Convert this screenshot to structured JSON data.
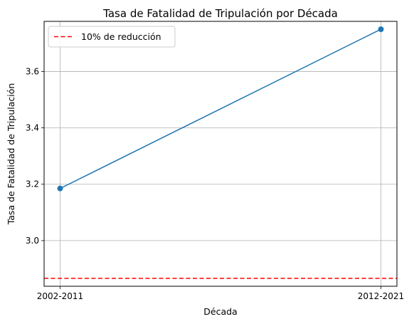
{
  "chart_data": {
    "type": "line",
    "title": "Tasa de Fatalidad de Tripulación por Década",
    "xlabel": "Década",
    "ylabel": "Tasa de Fatalidad de Tripulación",
    "categories": [
      "2002-2011",
      "2012-2021"
    ],
    "series": [
      {
        "values": [
          3.185,
          3.75
        ],
        "color": "#1f77b4",
        "marker": "circle"
      }
    ],
    "reference_lines": [
      {
        "name": "10% de reducción",
        "value": 2.866,
        "color": "#ff0000",
        "style": "dashed"
      }
    ],
    "ylim": [
      2.838,
      3.778
    ],
    "yticks": [
      "3.0",
      "3.2",
      "3.4",
      "3.6"
    ],
    "grid": true,
    "legend": "top-left"
  }
}
